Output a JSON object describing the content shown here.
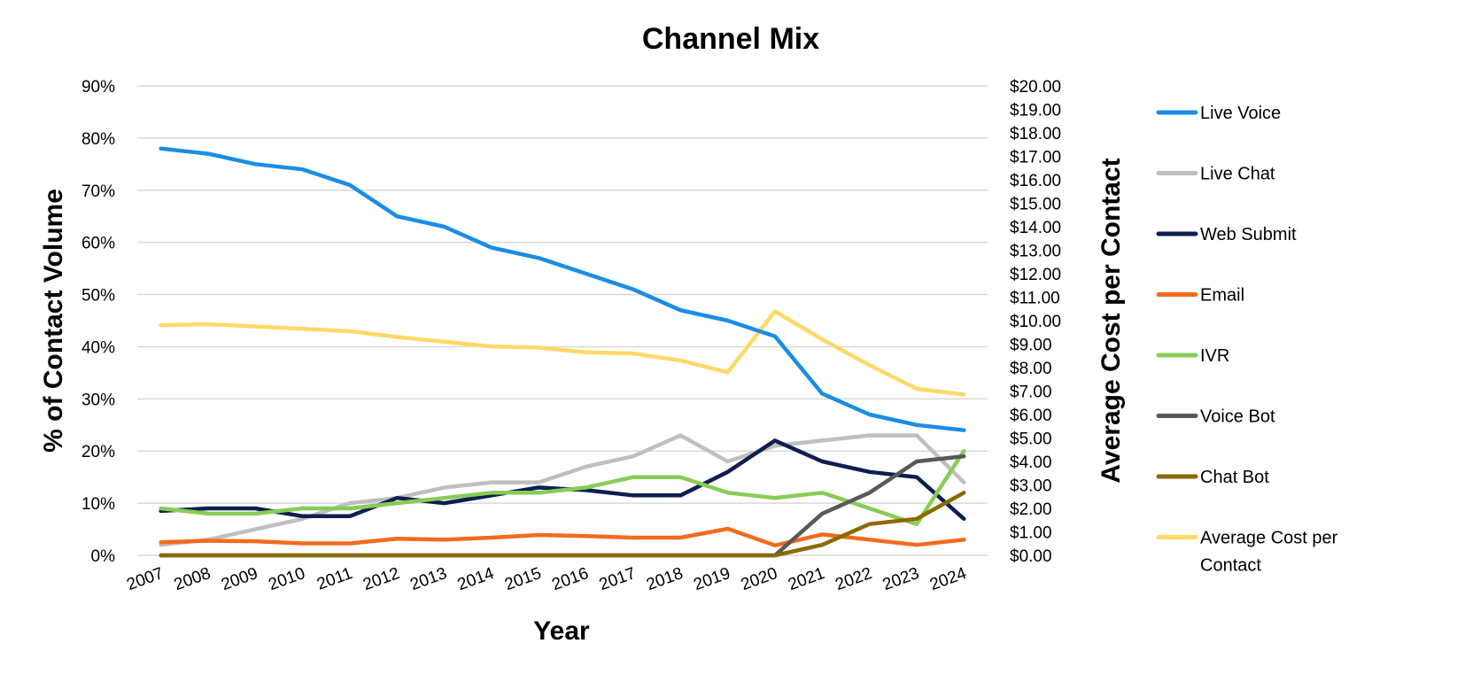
{
  "chart_data": {
    "type": "line",
    "title": "Channel Mix",
    "xlabel": "Year",
    "ylabel": "% of Contact Volume",
    "y2label": "Average Cost per Contact",
    "categories": [
      "2007",
      "2008",
      "2009",
      "2010",
      "2011",
      "2012",
      "2013",
      "2014",
      "2015",
      "2016",
      "2017",
      "2018",
      "2019",
      "2020",
      "2021",
      "2022",
      "2023",
      "2024"
    ],
    "ylim": [
      0,
      90
    ],
    "y_ticks": [
      "0%",
      "10%",
      "20%",
      "30%",
      "40%",
      "50%",
      "60%",
      "70%",
      "80%",
      "90%"
    ],
    "y2lim": [
      0,
      20
    ],
    "y2_ticks": [
      "$0.00",
      "$1.00",
      "$2.00",
      "$3.00",
      "$4.00",
      "$5.00",
      "$6.00",
      "$7.00",
      "$8.00",
      "$9.00",
      "$10.00",
      "$11.00",
      "$12.00",
      "$13.00",
      "$14.00",
      "$15.00",
      "$16.00",
      "$17.00",
      "$18.00",
      "$19.00",
      "$20.00"
    ],
    "grid": true,
    "legend_position": "right",
    "series": [
      {
        "name": "Live Voice",
        "axis": "left",
        "color": "#1a8de6",
        "values": [
          78,
          77,
          75,
          74,
          71,
          65,
          63,
          59,
          57,
          54,
          51,
          47,
          45,
          42,
          31,
          27,
          25,
          24
        ]
      },
      {
        "name": "Live Chat",
        "axis": "left",
        "color": "#bfbfbf",
        "values": [
          2,
          3,
          5,
          7,
          10,
          11,
          13,
          14,
          14,
          17,
          19,
          23,
          18,
          21,
          22,
          23,
          23,
          14
        ]
      },
      {
        "name": "Web Submit",
        "axis": "left",
        "color": "#0d1f4f",
        "values": [
          8.5,
          9,
          9,
          7.5,
          7.5,
          11,
          10,
          11.5,
          13,
          12.5,
          11.5,
          11.5,
          16,
          22,
          18,
          16,
          15,
          7
        ]
      },
      {
        "name": "Email",
        "axis": "left",
        "color": "#f26b1d",
        "values": [
          2.5,
          2.8,
          2.7,
          2.3,
          2.3,
          3.2,
          3,
          3.4,
          3.9,
          3.7,
          3.4,
          3.4,
          5.1,
          1.9,
          4,
          3,
          2,
          3
        ]
      },
      {
        "name": "IVR",
        "axis": "left",
        "color": "#88cc55",
        "values": [
          9,
          8,
          8,
          9,
          9,
          10,
          11,
          12,
          12,
          13,
          15,
          15,
          12,
          11,
          12,
          9,
          6,
          20
        ]
      },
      {
        "name": "Voice Bot",
        "axis": "left",
        "color": "#595959",
        "values": [
          0,
          0,
          0,
          0,
          0,
          0,
          0,
          0,
          0,
          0,
          0,
          0,
          0,
          0,
          8,
          12,
          18,
          19
        ]
      },
      {
        "name": "Chat Bot",
        "axis": "left",
        "color": "#8a6a00",
        "values": [
          0,
          0,
          0,
          0,
          0,
          0,
          0,
          0,
          0,
          0,
          0,
          0,
          0,
          0,
          2,
          6,
          7,
          12
        ]
      },
      {
        "name": "Average Cost per Contact",
        "axis": "right",
        "color": "#ffd966",
        "values": [
          9.8,
          9.85,
          9.75,
          9.65,
          9.55,
          9.3,
          9.1,
          8.9,
          8.85,
          8.65,
          8.6,
          8.3,
          7.8,
          10.4,
          9.2,
          8.1,
          7.1,
          6.85
        ]
      }
    ]
  }
}
